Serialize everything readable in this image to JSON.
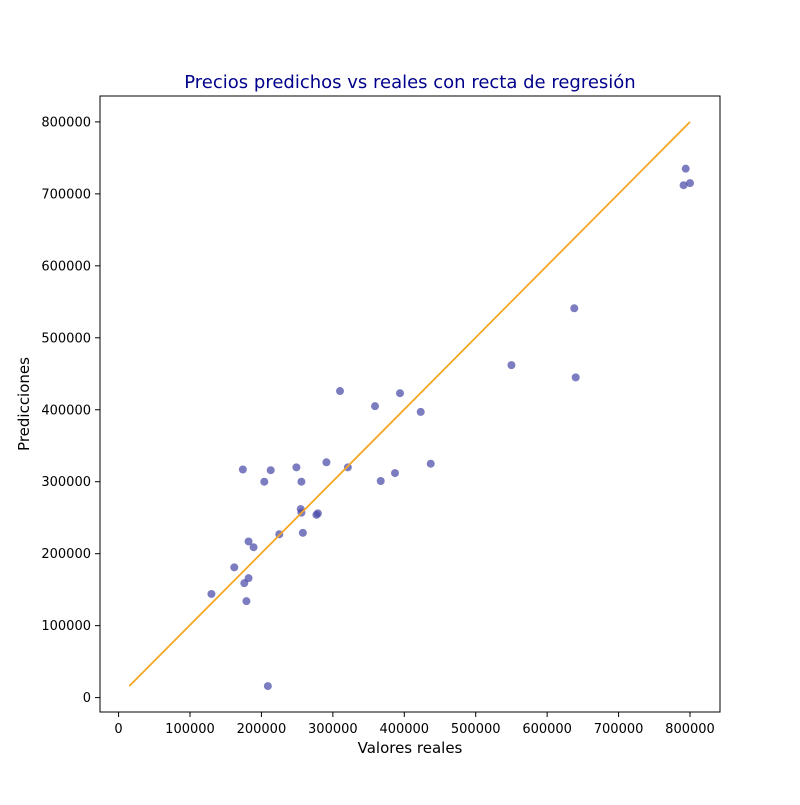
{
  "chart_data": {
    "type": "scatter",
    "title": "Precios predichos vs reales con recta de regresión",
    "xlabel": "Valores reales",
    "ylabel": "Predicciones",
    "xlim": [
      -26000,
      842000
    ],
    "ylim": [
      -20000,
      836000
    ],
    "xticks": [
      0,
      100000,
      200000,
      300000,
      400000,
      500000,
      600000,
      700000,
      800000
    ],
    "yticks": [
      0,
      100000,
      200000,
      300000,
      400000,
      500000,
      600000,
      700000,
      800000
    ],
    "grid": false,
    "colors": {
      "points": "#4a4aa8",
      "line": "#f5a623",
      "title": "#00008b"
    },
    "series": [
      {
        "kind": "points",
        "points": [
          [
            130000,
            144000
          ],
          [
            162000,
            181000
          ],
          [
            176000,
            159000
          ],
          [
            179000,
            134000
          ],
          [
            182000,
            166000
          ],
          [
            182000,
            217000
          ],
          [
            189000,
            209000
          ],
          [
            174000,
            317000
          ],
          [
            204000,
            300000
          ],
          [
            209000,
            16000
          ],
          [
            213000,
            316000
          ],
          [
            225000,
            227000
          ],
          [
            249000,
            320000
          ],
          [
            255000,
            262000
          ],
          [
            256000,
            257000
          ],
          [
            256000,
            300000
          ],
          [
            258000,
            229000
          ],
          [
            277000,
            254000
          ],
          [
            279000,
            256000
          ],
          [
            291000,
            327000
          ],
          [
            310000,
            426000
          ],
          [
            321000,
            320000
          ],
          [
            359000,
            405000
          ],
          [
            367000,
            301000
          ],
          [
            387000,
            312000
          ],
          [
            394000,
            423000
          ],
          [
            423000,
            397000
          ],
          [
            437000,
            325000
          ],
          [
            550000,
            462000
          ],
          [
            638000,
            541000
          ],
          [
            640000,
            445000
          ],
          [
            791000,
            712000
          ],
          [
            794000,
            735000
          ],
          [
            800000,
            715000
          ]
        ]
      },
      {
        "kind": "line",
        "points": [
          [
            15000,
            16000
          ],
          [
            800000,
            800000
          ]
        ]
      }
    ]
  }
}
